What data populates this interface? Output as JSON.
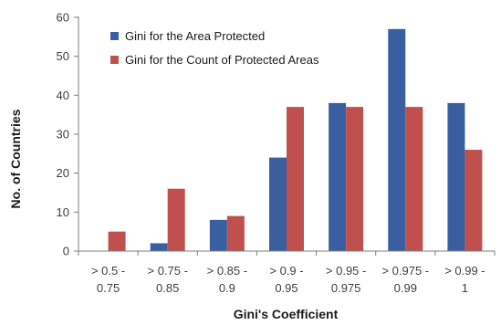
{
  "chart_data": {
    "type": "bar",
    "title": "",
    "xlabel": "Gini's Coefficient",
    "ylabel": "No. of Countries",
    "ylim": [
      0,
      60
    ],
    "yticks": [
      0,
      10,
      20,
      30,
      40,
      50,
      60
    ],
    "grid": false,
    "legend_position": "top-left",
    "categories": [
      [
        "> 0.5 -",
        "0.75"
      ],
      [
        "> 0.75 -",
        "0.85"
      ],
      [
        "> 0.85 -",
        "0.9"
      ],
      [
        "> 0.9 -",
        "0.95"
      ],
      [
        "> 0.95 -",
        "0.975"
      ],
      [
        "> 0.975 -",
        "0.99"
      ],
      [
        "> 0.99 -",
        "1"
      ]
    ],
    "series": [
      {
        "name": "Gini for the Area Protected",
        "color": "#3a5fa0",
        "values": [
          0,
          2,
          8,
          24,
          38,
          57,
          38
        ]
      },
      {
        "name": "Gini for the Count of Protected Areas",
        "color": "#c0504d",
        "values": [
          5,
          16,
          9,
          37,
          37,
          37,
          26
        ]
      }
    ]
  }
}
